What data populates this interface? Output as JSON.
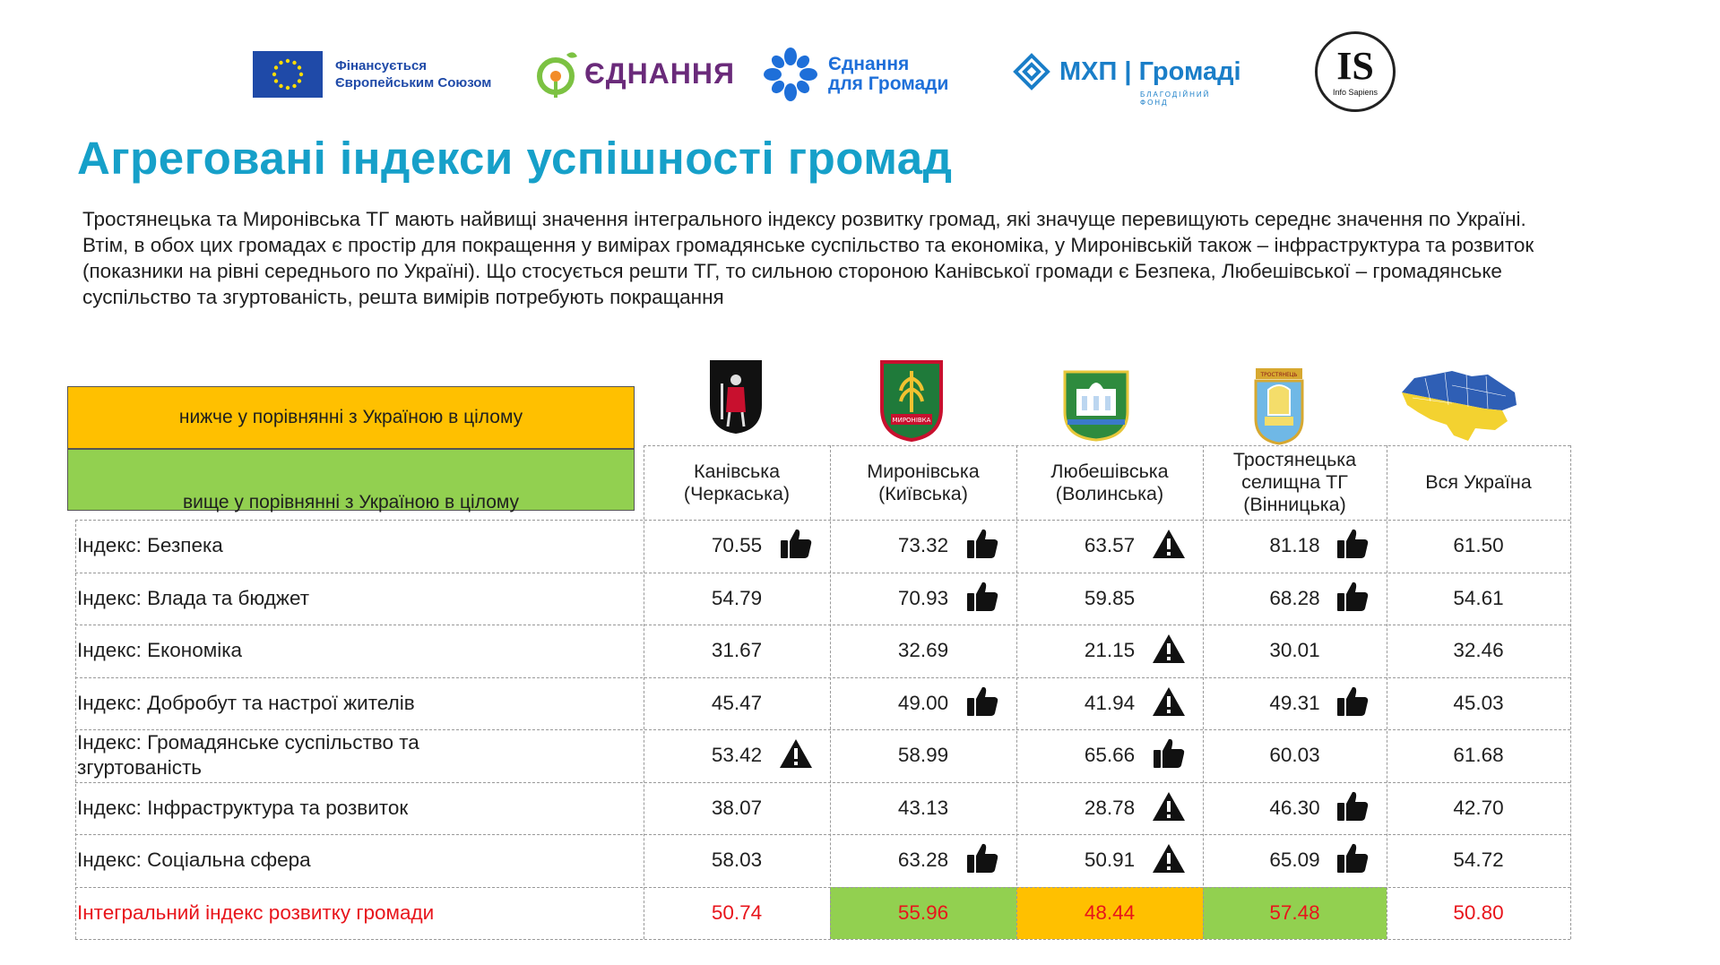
{
  "logos": {
    "eu_text_line1": "Фінансується",
    "eu_text_line2": "Європейським Союзом",
    "ednannya": "ЄДНАННЯ",
    "ednannya_hromady_line1": "Єднання",
    "ednannya_hromady_line2": "для Громади",
    "mhp": "МХП | Громаді",
    "mhp_sub": "БЛАГОДІЙНИЙ ФОНД",
    "is_big": "IS",
    "is_small": "Info Sapiens"
  },
  "title": "Агреговані індекси успішності громад",
  "intro": "Тростянецька та Миронівська ТГ мають найвищі значення інтегрального індексу розвитку громад, які значуще перевищують середнє значення по Україні. Втім, в обох цих громадах є простір для покращення у вимірах громадянське суспільство та економіка, у Миронівській також – інфраструктура та розвиток (показники на рівні середнього по Україні). Що стосується решти ТГ, то сильною стороною Канівської громади є Безпека, Любешівської – громадянське суспільство та згуртованість, решта вимірів потребують покращання",
  "legend": {
    "below": "нижче у порівнянні з Україною в цілому",
    "above": "вище у порівнянні з Україною в цілому",
    "below_color": "#ffc000",
    "above_color": "#92d050"
  },
  "columns": [
    {
      "line1": "Канівська",
      "line2": "(Черкаська)",
      "line3": ""
    },
    {
      "line1": "Миронівська",
      "line2": "(Київська)",
      "line3": ""
    },
    {
      "line1": "Любешівська",
      "line2": "(Волинська)",
      "line3": ""
    },
    {
      "line1": "Тростянецька",
      "line2": "селищна ТГ",
      "line3": "(Вінницька)"
    },
    {
      "line1": "Вся Україна",
      "line2": "",
      "line3": ""
    }
  ],
  "emblem_texts": {
    "myronivka": "МИРОНІВКА",
    "trostianets": "ТРОСТЯНЕЦЬ"
  },
  "rows": [
    {
      "label_line1": "Індекс: Безпека",
      "label_line2": "",
      "values": [
        "70.55",
        "73.32",
        "63.57",
        "81.18",
        "61.50"
      ],
      "marks": [
        "thumbs-up",
        "thumbs-up",
        "warning",
        "thumbs-up",
        ""
      ]
    },
    {
      "label_line1": "Індекс: Влада та бюджет",
      "label_line2": "",
      "values": [
        "54.79",
        "70.93",
        "59.85",
        "68.28",
        "54.61"
      ],
      "marks": [
        "",
        "thumbs-up",
        "",
        "thumbs-up",
        ""
      ]
    },
    {
      "label_line1": "Індекс: Економіка",
      "label_line2": "",
      "values": [
        "31.67",
        "32.69",
        "21.15",
        "30.01",
        "32.46"
      ],
      "marks": [
        "",
        "",
        "warning",
        "",
        ""
      ]
    },
    {
      "label_line1": "Індекс: Добробут та настрої жителів",
      "label_line2": "",
      "values": [
        "45.47",
        "49.00",
        "41.94",
        "49.31",
        "45.03"
      ],
      "marks": [
        "",
        "thumbs-up",
        "warning",
        "thumbs-up",
        ""
      ]
    },
    {
      "label_line1": "Індекс: Громадянське суспільство та",
      "label_line2": "згуртованість",
      "values": [
        "53.42",
        "58.99",
        "65.66",
        "60.03",
        "61.68"
      ],
      "marks": [
        "warning",
        "",
        "thumbs-up",
        "",
        ""
      ]
    },
    {
      "label_line1": "Індекс: Інфраструктура та розвиток",
      "label_line2": "",
      "values": [
        "38.07",
        "43.13",
        "28.78",
        "46.30",
        "42.70"
      ],
      "marks": [
        "",
        "",
        "warning",
        "thumbs-up",
        ""
      ]
    },
    {
      "label_line1": "Індекс: Соціальна сфера",
      "label_line2": "",
      "values": [
        "58.03",
        "63.28",
        "50.91",
        "65.09",
        "54.72"
      ],
      "marks": [
        "",
        "thumbs-up",
        "warning",
        "thumbs-up",
        ""
      ]
    }
  ],
  "integral": {
    "label": "Інтегральний індекс розвитку громади",
    "values": [
      "50.74",
      "55.96",
      "48.44",
      "57.48",
      "50.80"
    ],
    "highlight": [
      "",
      "above",
      "below",
      "above",
      ""
    ],
    "text_color": "#e8141b"
  },
  "colors": {
    "title": "#16a0c9",
    "highlight_above": "#92d050",
    "highlight_below": "#ffc000"
  }
}
